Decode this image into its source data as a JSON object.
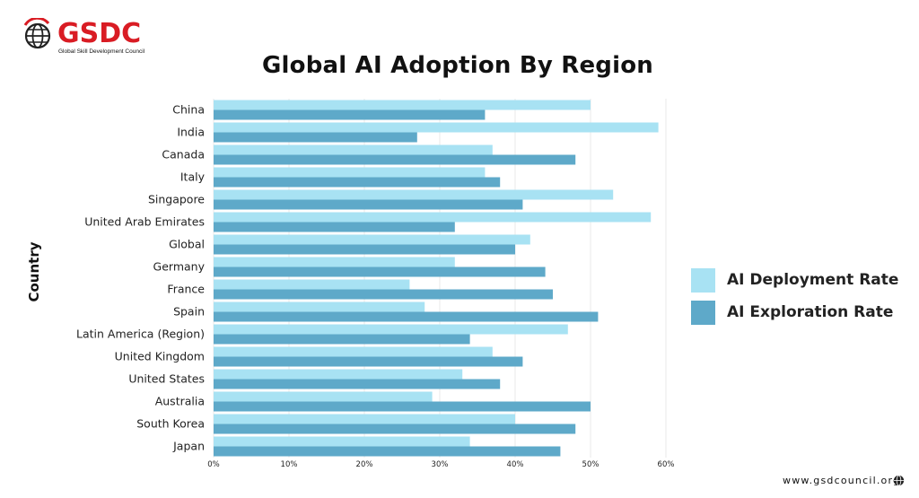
{
  "logo": {
    "name": "GSDC",
    "tagline": "Global Skill Development Council"
  },
  "footer": {
    "url": "www.gsdcouncil.org"
  },
  "colors": {
    "deployment": "#a8e2f3",
    "exploration": "#5ea9c9",
    "grid": "#e8e8e8",
    "brand": "#d91c24"
  },
  "chart_data": {
    "type": "bar",
    "orientation": "horizontal",
    "title": "Global AI Adoption By Region",
    "ylabel": "Country",
    "xlabel": "",
    "xlim": [
      0,
      60
    ],
    "xticks": [
      0,
      10,
      20,
      30,
      40,
      50,
      60
    ],
    "xtick_labels": [
      "0%",
      "10%",
      "20%",
      "30%",
      "40%",
      "50%",
      "60%"
    ],
    "legend_position": "right",
    "grid": "vertical",
    "categories": [
      "China",
      "India",
      "Canada",
      "Italy",
      "Singapore",
      "United Arab Emirates",
      "Global",
      "Germany",
      "France",
      "Spain",
      "Latin America (Region)",
      "United Kingdom",
      "United States",
      "Australia",
      "South Korea",
      "Japan"
    ],
    "series": [
      {
        "name": "AI Deployment Rate",
        "values": [
          50,
          59,
          37,
          36,
          53,
          58,
          42,
          32,
          26,
          28,
          47,
          37,
          33,
          29,
          40,
          34
        ]
      },
      {
        "name": "AI Exploration Rate",
        "values": [
          36,
          27,
          48,
          38,
          41,
          32,
          40,
          44,
          45,
          51,
          34,
          41,
          38,
          50,
          48,
          46
        ]
      }
    ]
  }
}
